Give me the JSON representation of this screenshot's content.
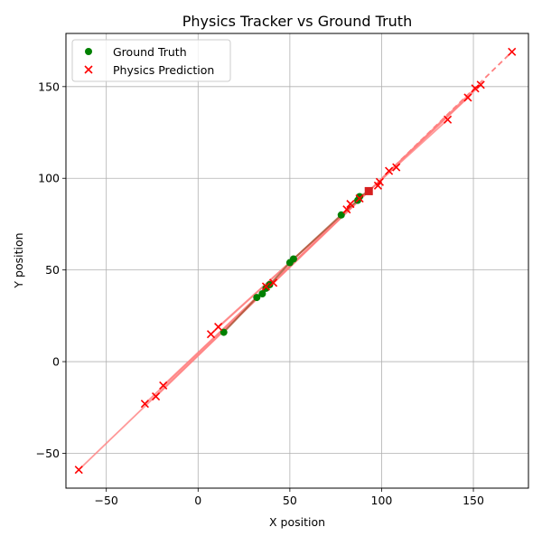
{
  "chart_data": {
    "type": "scatter",
    "title": "Physics Tracker vs Ground Truth",
    "xlabel": "X position",
    "ylabel": "Y position",
    "xlim": [
      -72,
      180
    ],
    "ylim": [
      -69,
      179
    ],
    "xticks": [
      -50,
      0,
      50,
      100,
      150
    ],
    "yticks": [
      -50,
      0,
      50,
      100,
      150
    ],
    "x_tick_labels": [
      "−50",
      "0",
      "50",
      "100",
      "150"
    ],
    "y_tick_labels": [
      "−50",
      "0",
      "50",
      "100",
      "150"
    ],
    "grid": true,
    "legend_position": "top-left",
    "series": [
      {
        "name": "Ground Truth",
        "marker": "circle",
        "color": "#008000",
        "points": [
          [
            14,
            16
          ],
          [
            32,
            35
          ],
          [
            35,
            37
          ],
          [
            37,
            40
          ],
          [
            39,
            42
          ],
          [
            50,
            54
          ],
          [
            52,
            56
          ],
          [
            78,
            80
          ],
          [
            87,
            88
          ],
          [
            88,
            90
          ],
          [
            93,
            93
          ]
        ]
      },
      {
        "name": "Physics Prediction",
        "marker": "x",
        "color": "#ff0000",
        "points": [
          [
            -65,
            -59
          ],
          [
            -29,
            -23
          ],
          [
            -23,
            -19
          ],
          [
            -19,
            -13
          ],
          [
            7,
            15
          ],
          [
            11,
            19
          ],
          [
            37,
            41
          ],
          [
            41,
            43
          ],
          [
            81,
            83
          ],
          [
            83,
            86
          ],
          [
            88,
            89
          ],
          [
            93,
            93
          ],
          [
            98,
            96
          ],
          [
            99,
            98
          ],
          [
            104,
            104
          ],
          [
            108,
            106
          ],
          [
            136,
            132
          ],
          [
            147,
            144
          ],
          [
            151,
            149
          ],
          [
            154,
            151
          ],
          [
            171,
            169
          ]
        ]
      }
    ],
    "trajectories": {
      "color": "#ff8080",
      "segments": [
        [
          [
            -65,
            -59
          ],
          [
            93,
            93
          ]
        ],
        [
          [
            -29,
            -23
          ],
          [
            93,
            93
          ]
        ],
        [
          [
            -23,
            -19
          ],
          [
            93,
            93
          ]
        ],
        [
          [
            -19,
            -13
          ],
          [
            93,
            93
          ]
        ],
        [
          [
            7,
            15
          ],
          [
            93,
            93
          ]
        ],
        [
          [
            11,
            19
          ],
          [
            93,
            93
          ]
        ],
        [
          [
            93,
            93
          ],
          [
            136,
            132
          ]
        ],
        [
          [
            93,
            93
          ],
          [
            147,
            144
          ]
        ],
        [
          [
            93,
            93
          ],
          [
            151,
            149
          ]
        ],
        [
          [
            93,
            93
          ],
          [
            154,
            151
          ]
        ]
      ],
      "dashed_segments": [
        [
          [
            93,
            93
          ],
          [
            171,
            169
          ]
        ]
      ],
      "ground_truth_path": [
        [
          14,
          16
        ],
        [
          32,
          35
        ],
        [
          35,
          37
        ],
        [
          37,
          40
        ],
        [
          39,
          42
        ],
        [
          50,
          54
        ],
        [
          52,
          56
        ],
        [
          78,
          80
        ],
        [
          87,
          88
        ],
        [
          88,
          90
        ],
        [
          93,
          93
        ]
      ]
    }
  }
}
